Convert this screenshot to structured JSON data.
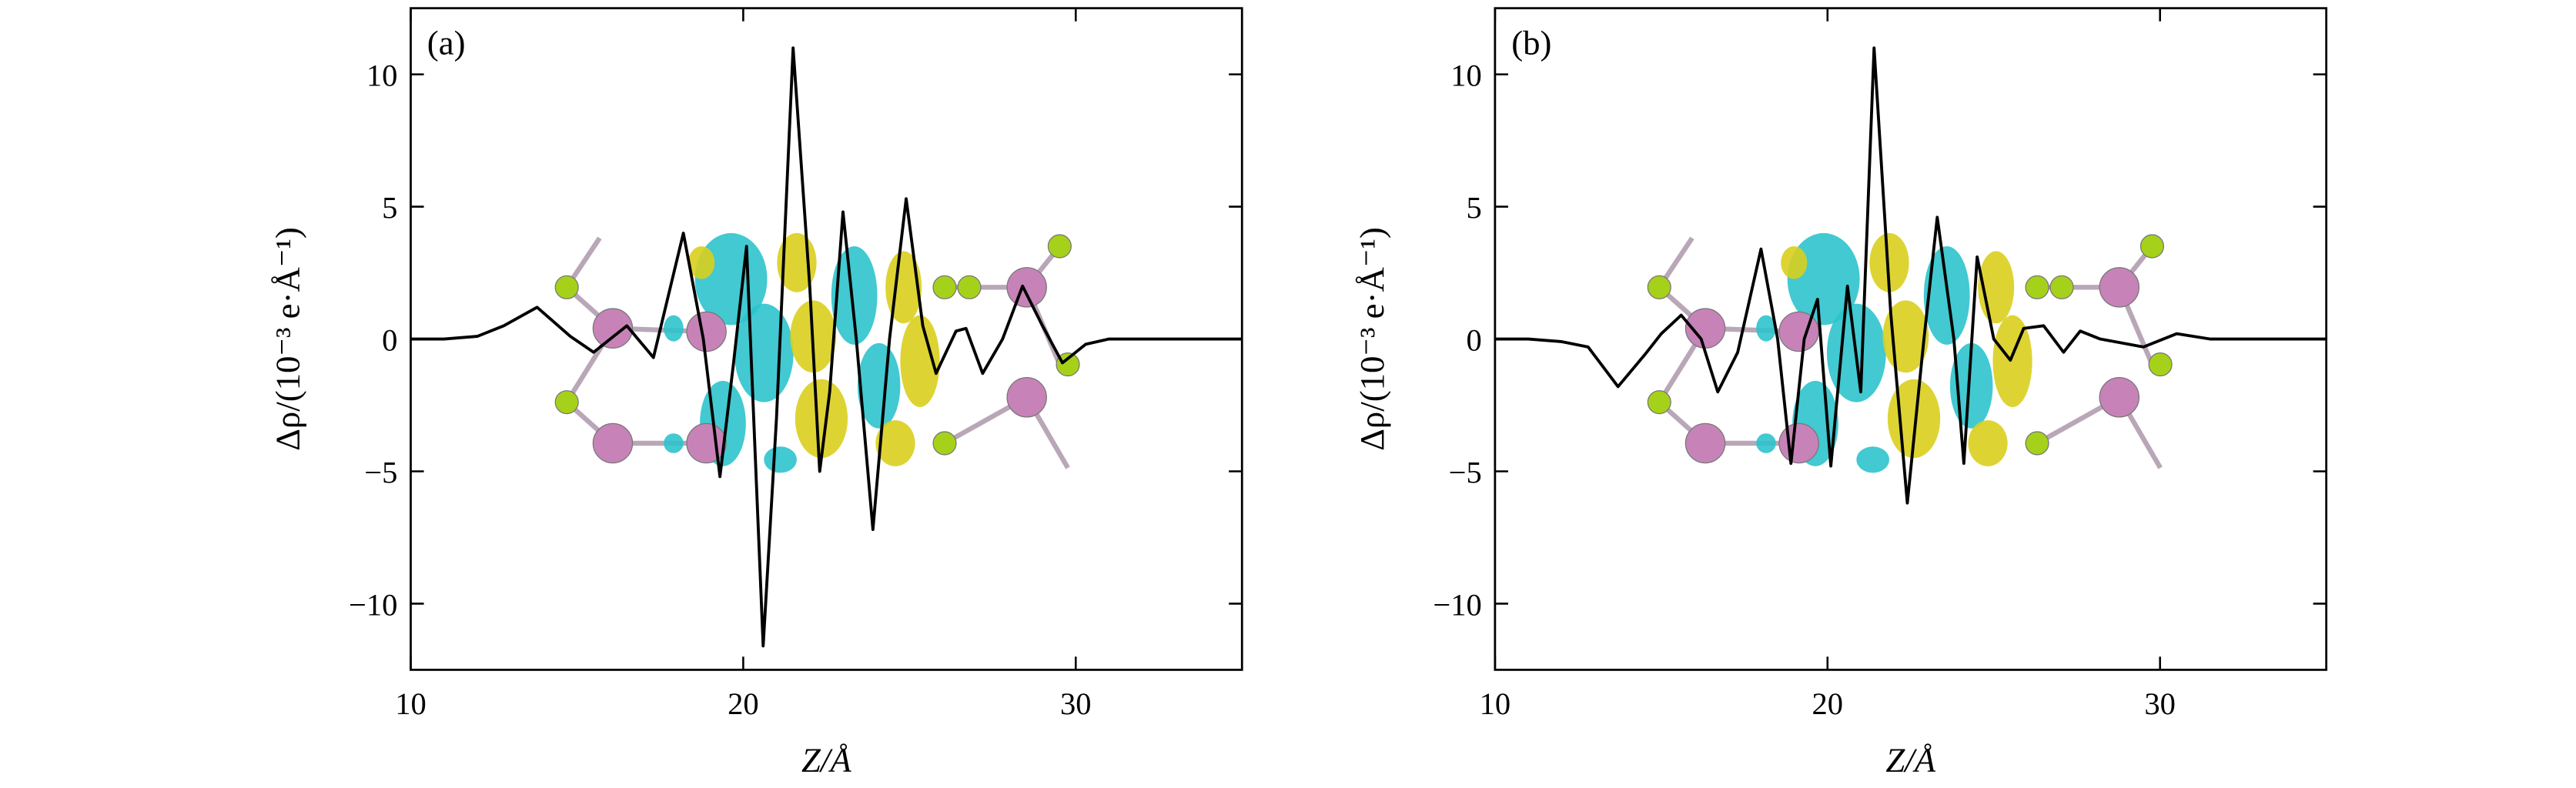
{
  "chart_data": [
    {
      "type": "line",
      "panel_label": "(a)",
      "x_label": "Z/Å",
      "y_label": "Δρ/(10⁻³ e·Å⁻¹)",
      "xlim": [
        10,
        35
      ],
      "ylim": [
        -12.5,
        12.5
      ],
      "xticks": [
        10,
        20,
        30
      ],
      "yticks": [
        {
          "value": -10,
          "label": "−10"
        },
        {
          "value": -5,
          "label": "−5"
        },
        0,
        5,
        10
      ],
      "series": [
        {
          "color": "#000000",
          "x": [
            10,
            11,
            12,
            12.8,
            13.8,
            14.8,
            15.5,
            16.5,
            17.3,
            18.2,
            18.8,
            19.3,
            19.7,
            20.1,
            20.6,
            21.0,
            21.5,
            22.0,
            22.3,
            22.6,
            23.0,
            23.4,
            23.9,
            24.4,
            24.9,
            25.4,
            25.8,
            26.4,
            26.7,
            27.2,
            27.8,
            28.4,
            29.0,
            29.6,
            30.3,
            31,
            33,
            35
          ],
          "values": [
            0,
            0,
            0.1,
            0.5,
            1.2,
            0.1,
            -0.5,
            0.5,
            -0.7,
            4.0,
            0,
            -5.2,
            -1,
            3.5,
            -11.6,
            -3,
            11.0,
            2,
            -5,
            -2,
            4.8,
            0,
            -7.2,
            0,
            5.3,
            0.5,
            -1.3,
            0.3,
            0.4,
            -1.3,
            0,
            2.0,
            0.5,
            -0.9,
            -0.2,
            0,
            0,
            0
          ]
        }
      ]
    },
    {
      "type": "line",
      "panel_label": "(b)",
      "x_label": "Z/Å",
      "y_label": "Δρ/(10⁻³ e·Å⁻¹)",
      "xlim": [
        10,
        35
      ],
      "ylim": [
        -12.5,
        12.5
      ],
      "xticks": [
        10,
        20,
        30
      ],
      "yticks": [
        {
          "value": -10,
          "label": "−10"
        },
        {
          "value": -5,
          "label": "−5"
        },
        0,
        5,
        10
      ],
      "series": [
        {
          "color": "#000000",
          "x": [
            10,
            11,
            12,
            12.8,
            13.7,
            14.5,
            15.0,
            15.6,
            16.2,
            16.7,
            17.3,
            18.0,
            18.5,
            18.9,
            19.3,
            19.7,
            20.1,
            20.6,
            21.0,
            21.4,
            21.9,
            22.4,
            22.9,
            23.3,
            23.8,
            24.1,
            24.5,
            25.0,
            25.5,
            25.9,
            26.5,
            27.1,
            27.6,
            28.2,
            29.5,
            30.5,
            31.5,
            35
          ],
          "values": [
            0,
            0,
            -0.1,
            -0.3,
            -1.8,
            -0.6,
            0.2,
            0.9,
            0,
            -2.0,
            -0.5,
            3.4,
            0,
            -4.7,
            0,
            1.5,
            -4.8,
            2,
            -2,
            11.0,
            1,
            -6.2,
            0,
            4.6,
            0,
            -4.7,
            3.1,
            0,
            -0.8,
            0.4,
            0.5,
            -0.5,
            0.3,
            0,
            -0.3,
            0.2,
            0,
            0
          ]
        }
      ]
    }
  ]
}
